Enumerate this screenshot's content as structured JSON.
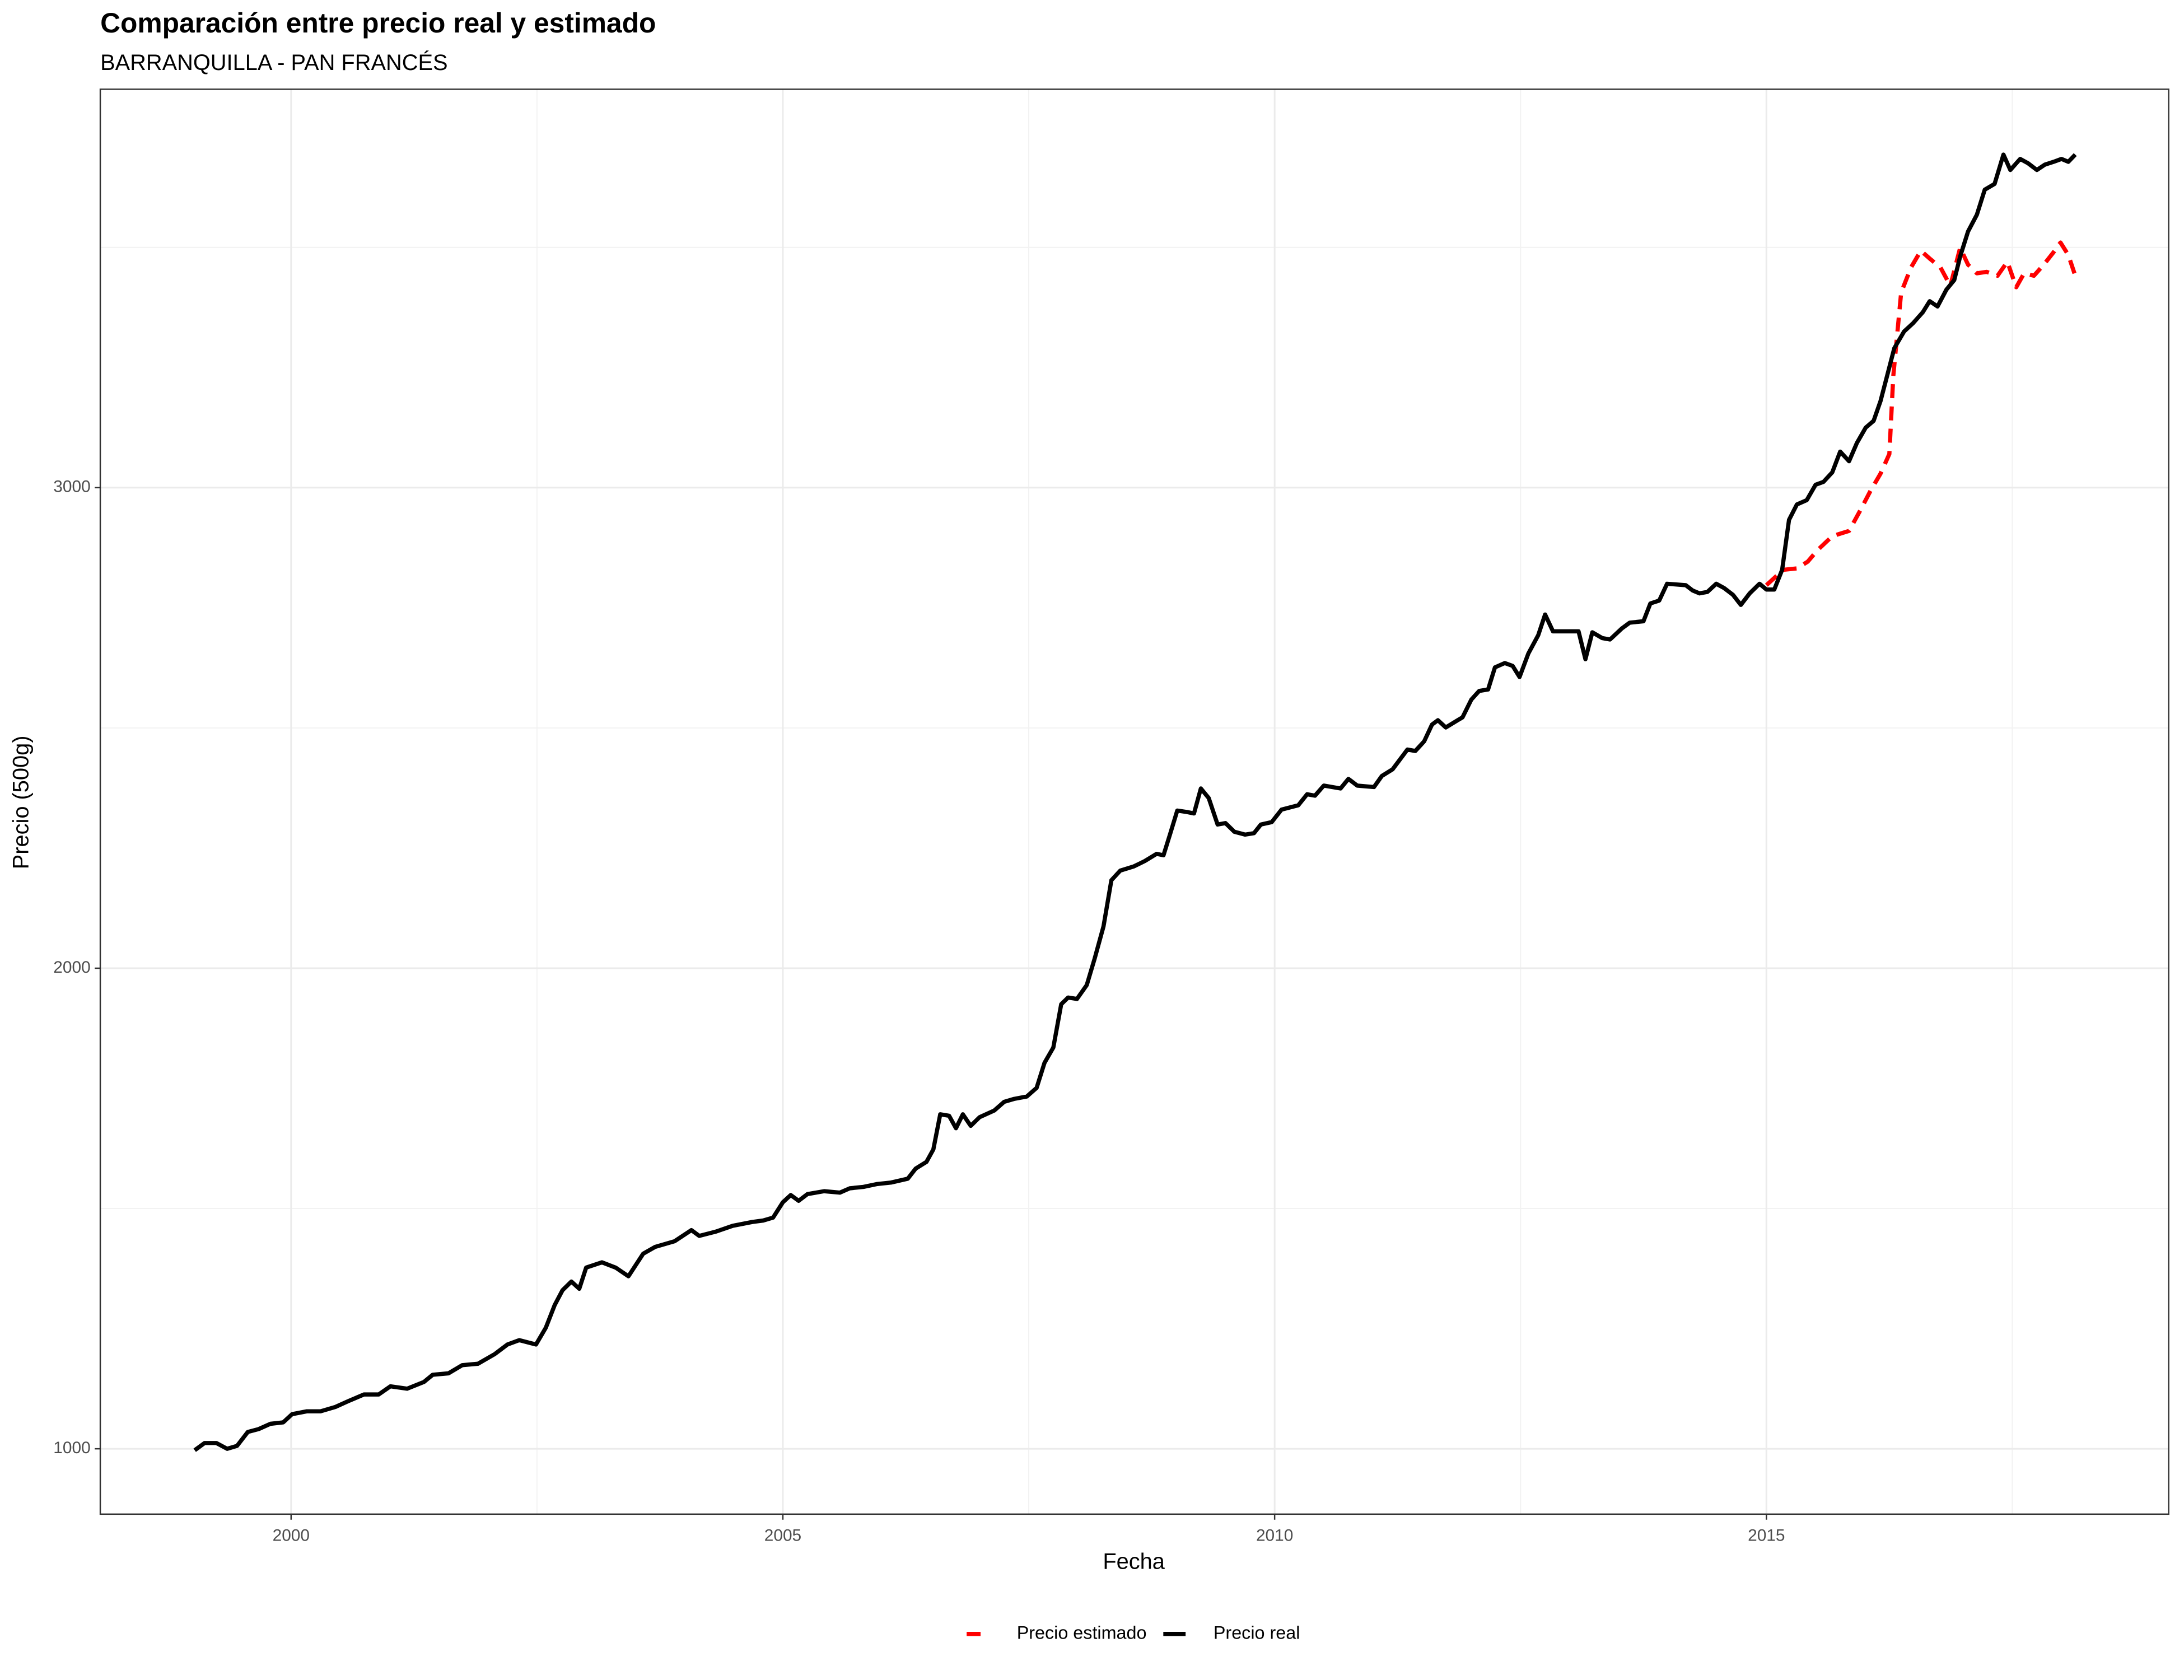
{
  "chart_data": {
    "type": "line",
    "title": "Comparación entre precio real y estimado",
    "subtitle": "BARRANQUILLA - PAN FRANCÉS",
    "x_label": "Fecha",
    "y_label": "Precio (500g)",
    "xlim": [
      1998.06,
      2019.09
    ],
    "xticks": [
      2000,
      2005,
      2010,
      2015
    ],
    "x_minor_ticks": [
      2002.5,
      2007.5,
      2012.5,
      2017.5
    ],
    "ylim": [
      864,
      3829
    ],
    "yticks": [
      1000,
      2000,
      3000
    ],
    "y_minor_ticks": [
      1500,
      2500,
      3500
    ],
    "grid": true,
    "legend_position": "bottom",
    "series": [
      {
        "name": "Precio estimado",
        "color": "#ff0000",
        "dash": true,
        "x": [
          2015.0,
          2015.08,
          2015.17,
          2015.31,
          2015.42,
          2015.52,
          2015.67,
          2015.84,
          2015.95,
          2016.06,
          2016.16,
          2016.25,
          2016.29,
          2016.37,
          2016.47,
          2016.57,
          2016.67,
          2016.77,
          2016.87,
          2016.97,
          2017.05,
          2017.14,
          2017.24,
          2017.35,
          2017.45,
          2017.54,
          2017.62,
          2017.72,
          2017.82,
          2017.92,
          2017.99,
          2018.07,
          2018.14
        ],
        "values": [
          2797,
          2812,
          2829,
          2832,
          2846,
          2870,
          2899,
          2910,
          2951,
          2994,
          3029,
          3070,
          3232,
          3406,
          3458,
          3493,
          3475,
          3458,
          3420,
          3499,
          3464,
          3446,
          3449,
          3441,
          3470,
          3417,
          3446,
          3441,
          3464,
          3490,
          3510,
          3484,
          3441
        ]
      },
      {
        "name": "Precio real",
        "color": "#000000",
        "dash": false,
        "x": [
          1999.02,
          1999.12,
          1999.24,
          1999.35,
          1999.45,
          1999.56,
          1999.67,
          1999.79,
          1999.92,
          2000.01,
          2000.16,
          2000.3,
          2000.45,
          2000.58,
          2000.74,
          2000.89,
          2001.01,
          2001.18,
          2001.35,
          2001.44,
          2001.6,
          2001.74,
          2001.9,
          2002.07,
          2002.2,
          2002.32,
          2002.49,
          2002.59,
          2002.68,
          2002.76,
          2002.85,
          2002.93,
          2003.0,
          2003.16,
          2003.3,
          2003.43,
          2003.58,
          2003.7,
          2003.9,
          2004.07,
          2004.15,
          2004.32,
          2004.49,
          2004.69,
          2004.8,
          2004.9,
          2005.0,
          2005.08,
          2005.16,
          2005.25,
          2005.42,
          2005.58,
          2005.68,
          2005.82,
          2005.96,
          2006.1,
          2006.27,
          2006.35,
          2006.46,
          2006.53,
          2006.6,
          2006.69,
          2006.76,
          2006.83,
          2006.91,
          2007.0,
          2007.15,
          2007.25,
          2007.35,
          2007.48,
          2007.58,
          2007.66,
          2007.75,
          2007.83,
          2007.9,
          2007.99,
          2008.09,
          2008.17,
          2008.26,
          2008.34,
          2008.43,
          2008.57,
          2008.68,
          2008.8,
          2008.87,
          2008.94,
          2009.01,
          2009.11,
          2009.18,
          2009.25,
          2009.33,
          2009.42,
          2009.5,
          2009.59,
          2009.7,
          2009.79,
          2009.86,
          2009.97,
          2010.07,
          2010.24,
          2010.33,
          2010.41,
          2010.5,
          2010.67,
          2010.75,
          2010.84,
          2011.01,
          2011.09,
          2011.2,
          2011.35,
          2011.43,
          2011.52,
          2011.6,
          2011.66,
          2011.74,
          2011.86,
          2011.91,
          2012.0,
          2012.08,
          2012.17,
          2012.24,
          2012.34,
          2012.42,
          2012.49,
          2012.58,
          2012.68,
          2012.75,
          2012.83,
          2012.99,
          2013.09,
          2013.16,
          2013.23,
          2013.33,
          2013.41,
          2013.53,
          2013.61,
          2013.75,
          2013.82,
          2013.91,
          2013.99,
          2014.18,
          2014.25,
          2014.32,
          2014.4,
          2014.49,
          2014.57,
          2014.66,
          2014.74,
          2014.83,
          2014.93,
          2015.0,
          2015.08,
          2015.16,
          2015.23,
          2015.31,
          2015.41,
          2015.5,
          2015.58,
          2015.67,
          2015.75,
          2015.84,
          2015.92,
          2016.01,
          2016.09,
          2016.16,
          2016.23,
          2016.3,
          2016.4,
          2016.49,
          2016.59,
          2016.66,
          2016.74,
          2016.83,
          2016.91,
          2016.97,
          2017.05,
          2017.14,
          2017.22,
          2017.32,
          2017.41,
          2017.48,
          2017.58,
          2017.66,
          2017.75,
          2017.83,
          2017.92,
          2018.0,
          2018.07,
          2018.14
        ],
        "values": [
          997,
          1012,
          1012,
          1000,
          1006,
          1035,
          1041,
          1052,
          1055,
          1072,
          1078,
          1078,
          1087,
          1099,
          1113,
          1113,
          1130,
          1125,
          1139,
          1154,
          1157,
          1174,
          1177,
          1197,
          1217,
          1226,
          1217,
          1252,
          1299,
          1330,
          1348,
          1333,
          1377,
          1388,
          1377,
          1359,
          1406,
          1420,
          1432,
          1455,
          1443,
          1452,
          1464,
          1472,
          1475,
          1481,
          1513,
          1528,
          1516,
          1530,
          1536,
          1533,
          1542,
          1545,
          1551,
          1554,
          1562,
          1583,
          1597,
          1623,
          1696,
          1693,
          1667,
          1696,
          1672,
          1690,
          1704,
          1722,
          1728,
          1733,
          1751,
          1803,
          1835,
          1925,
          1939,
          1936,
          1965,
          2020,
          2087,
          2183,
          2203,
          2212,
          2223,
          2238,
          2235,
          2281,
          2328,
          2325,
          2322,
          2374,
          2354,
          2299,
          2302,
          2284,
          2278,
          2281,
          2299,
          2304,
          2330,
          2339,
          2362,
          2359,
          2380,
          2374,
          2394,
          2380,
          2377,
          2400,
          2414,
          2455,
          2452,
          2472,
          2507,
          2516,
          2501,
          2516,
          2522,
          2559,
          2577,
          2580,
          2626,
          2635,
          2629,
          2606,
          2655,
          2693,
          2736,
          2701,
          2701,
          2701,
          2643,
          2699,
          2687,
          2684,
          2707,
          2719,
          2722,
          2759,
          2765,
          2800,
          2797,
          2786,
          2780,
          2783,
          2800,
          2791,
          2777,
          2756,
          2780,
          2800,
          2788,
          2788,
          2829,
          2933,
          2965,
          2974,
          3006,
          3012,
          3032,
          3075,
          3055,
          3093,
          3125,
          3139,
          3180,
          3235,
          3290,
          3325,
          3342,
          3365,
          3388,
          3377,
          3412,
          3432,
          3481,
          3533,
          3568,
          3620,
          3632,
          3693,
          3661,
          3684,
          3675,
          3661,
          3672,
          3678,
          3684,
          3678,
          3693
        ]
      }
    ]
  }
}
